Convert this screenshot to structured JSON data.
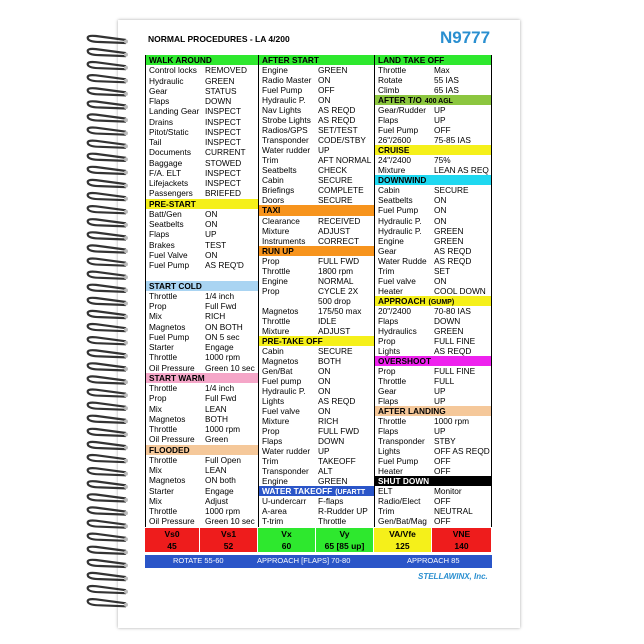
{
  "header": {
    "title": "NORMAL PROCEDURES - LA 4/200",
    "tail": "N9777"
  },
  "columns": [
    [
      {
        "heading": "WALK AROUND",
        "color": "#2ee82e"
      },
      {
        "label": "Control locks",
        "value": "REMOVED"
      },
      {
        "label": "Hydraulic",
        "value": "GREEN"
      },
      {
        "label": "Gear",
        "value": "STATUS"
      },
      {
        "label": "Flaps",
        "value": "DOWN"
      },
      {
        "label": "Landing Gear",
        "value": "INSPECT"
      },
      {
        "label": "Drains",
        "value": "INSPECT"
      },
      {
        "label": "Pitot/Static",
        "value": "INSPECT"
      },
      {
        "label": "Tail",
        "value": "INSPECT"
      },
      {
        "label": "Documents",
        "value": "CURRENT"
      },
      {
        "label": "Baggage",
        "value": "STOWED"
      },
      {
        "label": "F/A. ELT",
        "value": "INSPECT"
      },
      {
        "label": "Lifejackets",
        "value": "INSPECT"
      },
      {
        "label": "Passengers",
        "value": "BRIEFED"
      },
      {
        "heading": "PRE-START",
        "color": "#f5f01a"
      },
      {
        "label": "Batt/Gen",
        "value": "ON"
      },
      {
        "label": "Seatbelts",
        "value": "ON"
      },
      {
        "label": "Flaps",
        "value": "UP"
      },
      {
        "label": "Brakes",
        "value": "TEST"
      },
      {
        "label": "Fuel Valve",
        "value": "ON"
      },
      {
        "label": "Fuel Pump",
        "value": "AS REQ'D"
      },
      null,
      {
        "heading": "START COLD",
        "color": "#a9d4f2"
      },
      {
        "label": "Throttle",
        "value": "1/4 inch"
      },
      {
        "label": "Prop",
        "value": "Full Fwd"
      },
      {
        "label": "Mix",
        "value": "RICH"
      },
      {
        "label": "Magnetos",
        "value": "ON BOTH"
      },
      {
        "label": "Fuel Pump",
        "value": "ON 5 sec"
      },
      {
        "label": "Starter",
        "value": "Engage"
      },
      {
        "label": "Throttle",
        "value": "1000 rpm"
      },
      {
        "label": "Oil Pressure",
        "value": "Green 10 sec"
      },
      {
        "heading": "START WARM",
        "color": "#f5a6c8"
      },
      {
        "label": "Throttle",
        "value": "1/4 inch"
      },
      {
        "label": "Prop",
        "value": "Full Fwd"
      },
      {
        "label": "Mix",
        "value": "LEAN"
      },
      {
        "label": "Magnetos",
        "value": "BOTH"
      },
      {
        "label": "Throttle",
        "value": "1000 rpm"
      },
      {
        "label": "Oil Pressure",
        "value": "Green"
      },
      {
        "heading": "FLOODED",
        "color": "#f5c89a"
      },
      {
        "label": "Throttle",
        "value": "Full Open"
      },
      {
        "label": "Mix",
        "value": "LEAN"
      },
      {
        "label": "Magnetos",
        "value": "ON both"
      },
      {
        "label": "Starter",
        "value": "Engage"
      },
      {
        "label": "Mix",
        "value": "Adjust"
      },
      {
        "label": "Throttle",
        "value": "1000 rpm"
      },
      {
        "label": "Oil Pressure",
        "value": "Green 10 sec"
      }
    ],
    [
      {
        "heading": "AFTER START",
        "color": "#2ee82e"
      },
      {
        "label": "Engine",
        "value": "GREEN"
      },
      {
        "label": "Radio Master",
        "value": "ON"
      },
      {
        "label": "Fuel Pump",
        "value": "OFF"
      },
      {
        "label": "Hydraulic P.",
        "value": "ON"
      },
      {
        "label": "Nav Lights",
        "value": "AS REQD"
      },
      {
        "label": "Strobe Lights",
        "value": "AS REQD"
      },
      {
        "label": "Radios/GPS",
        "value": "SET/TEST"
      },
      {
        "label": "Transponder",
        "value": "CODE/STBY"
      },
      {
        "label": "Water rudder",
        "value": "UP"
      },
      {
        "label": "Trim",
        "value": "AFT NORMAL"
      },
      {
        "label": "Seatbelts",
        "value": "CHECK"
      },
      {
        "label": "Cabin",
        "value": "SECURE"
      },
      {
        "label": "Briefings",
        "value": "COMPLETE"
      },
      {
        "label": "Doors",
        "value": "SECURE"
      },
      {
        "heading": "TAXI",
        "color": "#f7941d"
      },
      {
        "label": "Clearance",
        "value": "RECEIVED"
      },
      {
        "label": "Mixture",
        "value": "ADJUST"
      },
      {
        "label": "Instruments",
        "value": "CORRECT"
      },
      {
        "heading": "RUN UP",
        "color": "#f7941d"
      },
      {
        "label": "Prop",
        "value": "FULL FWD"
      },
      {
        "label": "Throttle",
        "value": "1800 rpm"
      },
      {
        "label": "Engine",
        "value": "NORMAL"
      },
      {
        "label": "Prop",
        "value": "CYCLE 2X"
      },
      {
        "value": "500 drop"
      },
      {
        "label": "Magnetos",
        "value": "175/50 max"
      },
      {
        "label": "Throttle",
        "value": "IDLE"
      },
      {
        "label": "Mixture",
        "value": "ADJUST"
      },
      {
        "heading": "PRE-TAKE OFF",
        "color": "#f5f01a"
      },
      {
        "label": "Cabin",
        "value": "SECURE"
      },
      {
        "label": "Magnetos",
        "value": "BOTH"
      },
      {
        "label": "Gen/Bat",
        "value": "ON"
      },
      {
        "label": "Fuel pump",
        "value": "ON"
      },
      {
        "label": "Hydraulic P.",
        "value": "ON"
      },
      {
        "label": "Lights",
        "value": "AS REQD"
      },
      {
        "label": "Fuel valve",
        "value": "ON"
      },
      {
        "label": "Mixture",
        "value": "RICH"
      },
      {
        "label": "Prop",
        "value": "FULL FWD"
      },
      {
        "label": "Flaps",
        "value": "DOWN"
      },
      {
        "label": "Water rudder",
        "value": "UP"
      },
      {
        "label": "Trim",
        "value": "TAKEOFF"
      },
      {
        "label": "Transponder",
        "value": "ALT"
      },
      {
        "label": "Engine",
        "value": "GREEN"
      },
      {
        "heading": "WATER TAKEOFF",
        "note": "(UFARTT",
        "color": "#2a55c8",
        "text_color": "#ffffff"
      },
      {
        "label": "U-undercarr",
        "value": "F-flaps"
      },
      {
        "label": "A-area",
        "value": "R-Rudder UP"
      },
      {
        "label": "T-trim",
        "value": "Throttle"
      }
    ],
    [
      {
        "heading": "LAND TAKE OFF",
        "color": "#2ee82e"
      },
      {
        "label": "Throttle",
        "value": "Max"
      },
      {
        "label": "Rotate",
        "value": "55 IAS"
      },
      {
        "label": "Climb",
        "value": "65 IAS"
      },
      {
        "heading": "AFTER T/O",
        "note": "400 AGL",
        "color": "#8cc63f"
      },
      {
        "label": "Gear/Rudder",
        "value": "UP"
      },
      {
        "label": "Flaps",
        "value": "UP"
      },
      {
        "label": "Fuel Pump",
        "value": "OFF"
      },
      {
        "label": "26\"/2600",
        "value": "75-85 IAS"
      },
      {
        "heading": "CRUISE",
        "color": "#f5f01a"
      },
      {
        "label": "24\"/2400",
        "value": "75%"
      },
      {
        "label": "Mixture",
        "value": "LEAN AS REQ"
      },
      {
        "heading": "DOWNWIND",
        "color": "#1fd8f0"
      },
      {
        "label": "Cabin",
        "value": "SECURE"
      },
      {
        "label": "Seatbelts",
        "value": "ON"
      },
      {
        "label": "Fuel Pump",
        "value": "ON"
      },
      {
        "label": "Hydraulic P.",
        "value": "ON"
      },
      {
        "label": "Hydraulic P.",
        "value": "GREEN"
      },
      {
        "label": "Engine",
        "value": "GREEN"
      },
      {
        "label": "Gear",
        "value": "AS REQD"
      },
      {
        "label": "Water Rudde",
        "value": "AS REQD"
      },
      {
        "label": "Trim",
        "value": "SET"
      },
      {
        "label": "Fuel valve",
        "value": "ON"
      },
      {
        "label": "Heater",
        "value": "COOL DOWN"
      },
      {
        "heading": "APPROACH",
        "note": "(GUMP)",
        "color": "#f5f01a"
      },
      {
        "label": "20\"/2400",
        "value": "70-80 IAS"
      },
      {
        "label": "Flaps",
        "value": "DOWN"
      },
      {
        "label": "Hydraulics",
        "value": "GREEN"
      },
      {
        "label": "Prop",
        "value": "FULL FINE"
      },
      {
        "label": "Lights",
        "value": "AS REQD"
      },
      {
        "heading": "OVERSHOOT",
        "color": "#ee22ee"
      },
      {
        "label": "Prop",
        "value": "FULL FINE"
      },
      {
        "label": "Throttle",
        "value": "FULL"
      },
      {
        "label": "Gear",
        "value": "UP"
      },
      {
        "label": "Flaps",
        "value": "UP"
      },
      {
        "heading": "AFTER LANDING",
        "color": "#f5c89a"
      },
      {
        "label": "Throttle",
        "value": "1000 rpm"
      },
      {
        "label": "Flaps",
        "value": "UP"
      },
      {
        "label": "Transponder",
        "value": "STBY"
      },
      {
        "label": "Lights",
        "value": "OFF AS REQD"
      },
      {
        "label": "Fuel Pump",
        "value": "OFF"
      },
      {
        "label": "Heater",
        "value": "OFF"
      },
      {
        "heading": "SHUT DOWN",
        "color": "#000000",
        "text_color": "#ffffff"
      },
      {
        "label": "ELT",
        "value": "Monitor"
      },
      {
        "label": "Radio/Elect",
        "value": "OFF"
      },
      {
        "label": "Trim",
        "value": "NEUTRAL"
      },
      {
        "label": "Gen/Bat/Mag",
        "value": "OFF"
      }
    ]
  ],
  "speeds": [
    {
      "label": "Vs0",
      "value": "45",
      "color": "#ee1c1c"
    },
    {
      "label": "Vs1",
      "value": "52",
      "color": "#ee1c1c"
    },
    {
      "label": "Vx",
      "value": "60",
      "color": "#2ee82e"
    },
    {
      "label": "Vy",
      "value": "65 [85 up]",
      "color": "#2ee82e"
    },
    {
      "label": "VA/Vfe",
      "value": "125",
      "color": "#f5f01a"
    },
    {
      "label": "VNE",
      "value": "140",
      "color": "#ee1c1c"
    }
  ],
  "speed_notes": [
    "ROTATE 55-60",
    "APPROACH [FLAPS] 70-80",
    "APPROACH 85"
  ],
  "footer": "STELLAWINX, Inc."
}
